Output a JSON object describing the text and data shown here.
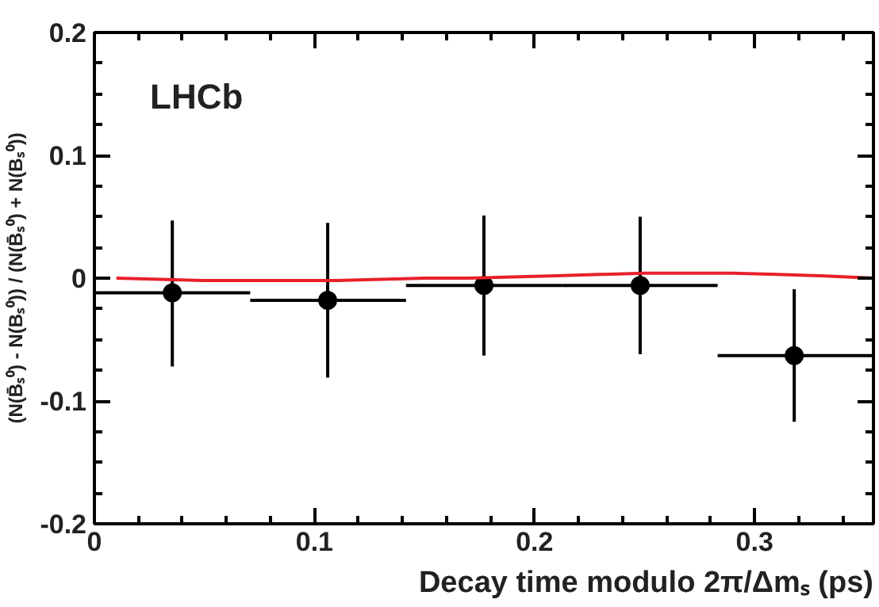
{
  "chart_data": {
    "type": "scatter",
    "xlabel": "Decay time modulo 2π/Δmₛ (ps)",
    "ylabel": "(N(B̄ₛ⁰) - N(Bₛ⁰)) / (N(B̄ₛ⁰) + N(Bₛ⁰))",
    "annotations": [
      "LHCb"
    ],
    "xlim": [
      0,
      0.354
    ],
    "ylim": [
      -0.2,
      0.2
    ],
    "xticks": [
      0,
      0.1,
      0.2,
      0.3
    ],
    "yticks": [
      -0.2,
      -0.1,
      0,
      0.1,
      0.2
    ],
    "grid": false,
    "series": [
      {
        "color": "#000000",
        "marker": "circle",
        "x": [
          0.0354,
          0.106,
          0.177,
          0.248,
          0.318
        ],
        "values": [
          -0.012,
          -0.018,
          -0.006,
          -0.006,
          -0.063
        ],
        "errors": [
          [
            -0.072,
            0.047
          ],
          [
            -0.081,
            0.045
          ],
          [
            -0.063,
            0.051
          ],
          [
            -0.062,
            0.05
          ],
          [
            -0.117,
            -0.009
          ]
        ],
        "xerrors": [
          [
            0,
            0.0708
          ],
          [
            0.0708,
            0.1416
          ],
          [
            0.1416,
            0.2124
          ],
          [
            0.2124,
            0.2832
          ],
          [
            0.2832,
            0.354
          ]
        ]
      },
      {
        "type": "line",
        "color": "#e8202a",
        "marker": "none",
        "x": [
          0.01,
          0.03,
          0.05,
          0.07,
          0.09,
          0.11,
          0.13,
          0.15,
          0.17,
          0.19,
          0.21,
          0.23,
          0.25,
          0.27,
          0.29,
          0.31,
          0.33,
          0.354
        ],
        "values": [
          0.0,
          -0.001,
          -0.002,
          -0.002,
          -0.002,
          -0.002,
          -0.001,
          0.0,
          0.0,
          0.001,
          0.002,
          0.003,
          0.004,
          0.004,
          0.004,
          0.003,
          0.002,
          0.0
        ]
      }
    ]
  }
}
